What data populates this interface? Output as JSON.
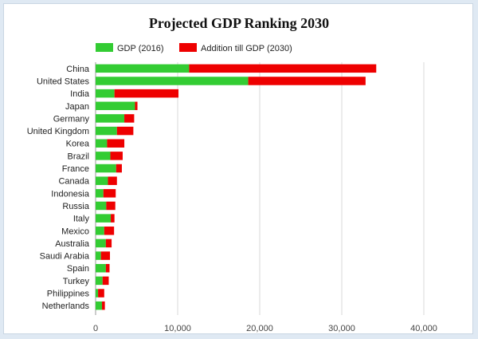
{
  "chart_data": {
    "type": "bar",
    "orientation": "horizontal",
    "stacked": true,
    "title": "Projected GDP Ranking 2030",
    "xlabel": "",
    "ylabel": "",
    "xlim": [
      0,
      40000
    ],
    "x_ticks": [
      "0",
      "10,000",
      "20,000",
      "30,000",
      "40,000"
    ],
    "grid": "vertical",
    "legend_position": "top",
    "categories": [
      "China",
      "United States",
      "India",
      "Japan",
      "Germany",
      "United Kingdom",
      "Korea",
      "Brazil",
      "France",
      "Canada",
      "Indonesia",
      "Russia",
      "Italy",
      "Mexico",
      "Australia",
      "Saudi Arabia",
      "Spain",
      "Turkey",
      "Philippines",
      "Netherlands"
    ],
    "series": [
      {
        "name": "GDP (2016)",
        "color": "#33cc33",
        "values": [
          11400,
          18600,
          2300,
          4800,
          3500,
          2600,
          1400,
          1800,
          2500,
          1500,
          950,
          1300,
          1850,
          1050,
          1250,
          650,
          1250,
          850,
          300,
          780
        ]
      },
      {
        "name": "Addition till GDP (2030)",
        "color": "#ee0000",
        "values": [
          22800,
          14300,
          7800,
          300,
          1200,
          2000,
          2100,
          1500,
          700,
          1100,
          1500,
          1100,
          450,
          1200,
          700,
          1100,
          450,
          750,
          750,
          350
        ]
      }
    ]
  }
}
